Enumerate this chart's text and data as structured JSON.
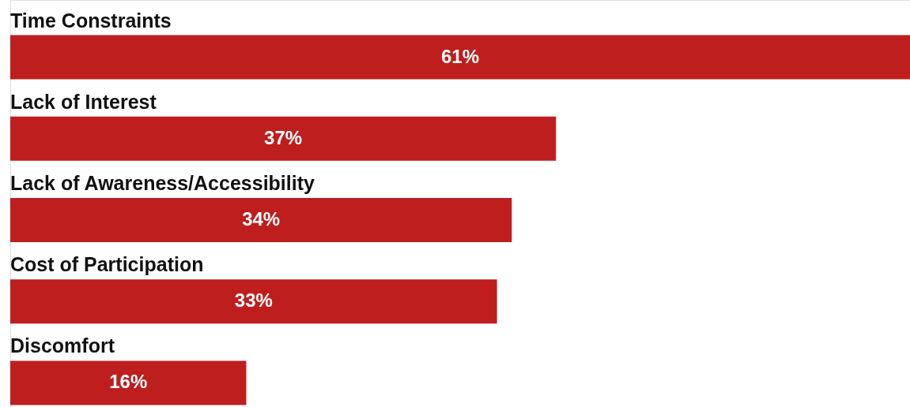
{
  "chart_data": {
    "type": "bar",
    "orientation": "horizontal",
    "categories": [
      "Time Constraints",
      "Lack of Interest",
      "Lack of Awareness/Accessibility",
      "Cost of Participation",
      "Discomfort"
    ],
    "values": [
      61,
      37,
      34,
      33,
      16
    ],
    "value_labels": [
      "61%",
      "37%",
      "34%",
      "33%",
      "16%"
    ],
    "color": "#be1e1e"
  }
}
